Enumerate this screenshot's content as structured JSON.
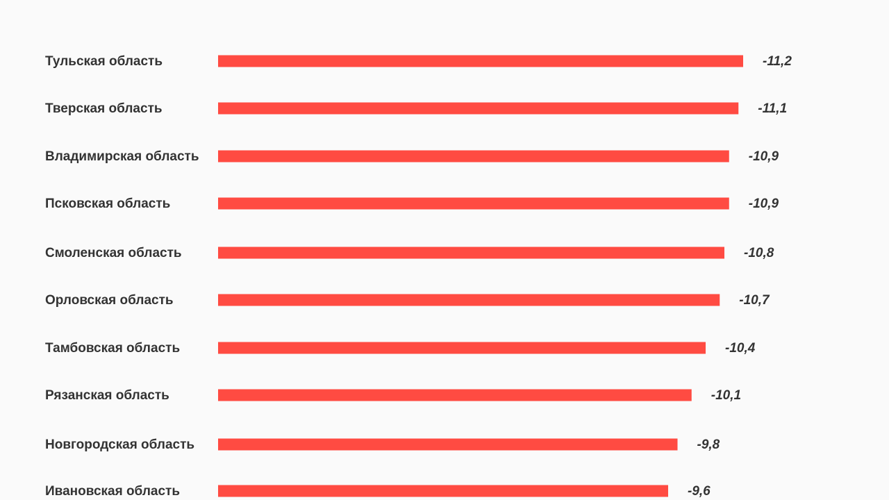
{
  "chart_data": {
    "type": "bar",
    "orientation": "horizontal",
    "categories": [
      "Тульская область",
      "Тверская область",
      "Владимирская область",
      "Псковская область",
      "Смоленская область",
      "Орловская область",
      "Тамбовская область",
      "Рязанская область",
      "Новгородская область",
      "Ивановская область"
    ],
    "values": [
      -11.2,
      -11.1,
      -10.9,
      -10.9,
      -10.8,
      -10.7,
      -10.4,
      -10.1,
      -9.8,
      -9.6
    ],
    "value_labels": [
      "-11,2",
      "-11,1",
      "-10,9",
      "-10,9",
      "-10,8",
      "-10,7",
      "-10,4",
      "-10,1",
      "-9,8",
      "-9,6"
    ],
    "bar_color": "#ff4b42",
    "grid": false,
    "legend": "none"
  }
}
